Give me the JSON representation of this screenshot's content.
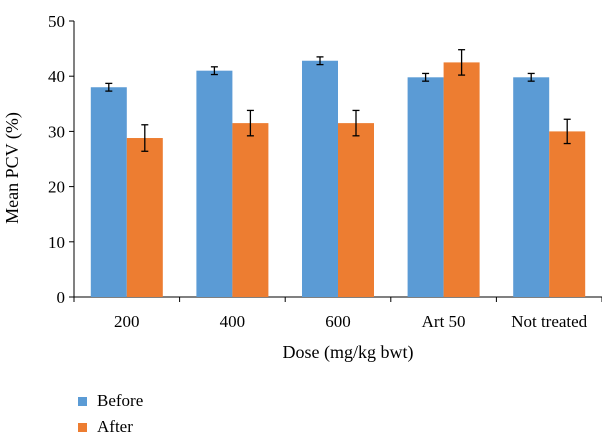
{
  "chart_data": {
    "type": "bar",
    "title": "",
    "xlabel": "Dose (mg/kg bwt)",
    "ylabel": "Mean PCV (%)",
    "ylim": [
      0,
      50
    ],
    "yticks": [
      "0",
      "10",
      "20",
      "30",
      "40",
      "50"
    ],
    "grid": false,
    "legend_position": "bottom-left",
    "categories": [
      "200",
      "400",
      "600",
      "Art 50",
      "Not treated"
    ],
    "series": [
      {
        "name": "Before",
        "color": "#5B9BD5",
        "values": [
          38.0,
          41.0,
          42.8,
          39.8,
          39.8
        ],
        "errors": [
          0.7,
          0.7,
          0.7,
          0.7,
          0.7
        ]
      },
      {
        "name": "After",
        "color": "#ED7D31",
        "values": [
          28.8,
          31.5,
          31.5,
          42.5,
          30.0
        ],
        "errors": [
          2.4,
          2.3,
          2.3,
          2.3,
          2.2
        ]
      }
    ]
  }
}
